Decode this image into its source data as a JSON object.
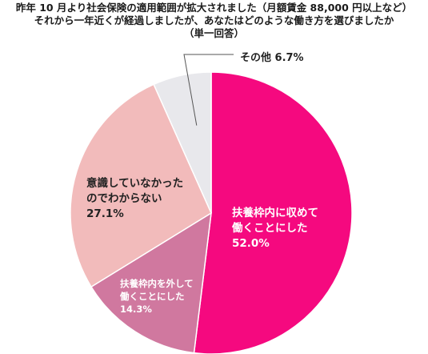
{
  "title_lines": [
    "昨年 10 月より社会保険の適用範囲が拡大されました（月額賃金 88,000 円以上など）",
    "それから一年近くが経過しましたが、あなたはどのような働き方を選びましたか",
    "（単一回答）"
  ],
  "chart_data": {
    "type": "pie",
    "start": "12 o'clock",
    "direction": "clockwise",
    "slices": [
      {
        "label_lines": [
          "扶養枠内に収めて",
          "働くことにした"
        ],
        "value_text": "52.0%",
        "value": 52.0,
        "color": "#f5097f",
        "text_color": "#ffffff"
      },
      {
        "label_lines": [
          "扶養枠内を外して",
          "働くことにした"
        ],
        "value_text": "14.3%",
        "value": 14.3,
        "color": "#d0789f",
        "text_color": "#ffffff"
      },
      {
        "label_lines": [
          "意識していなかった",
          "のでわからない"
        ],
        "value_text": "27.1%",
        "value": 27.1,
        "color": "#f2bbbb",
        "text_color": "#222222"
      },
      {
        "label_lines": [
          "その他 6.7%"
        ],
        "value_text": "",
        "value": 6.7,
        "color": "#e8e8ec",
        "text_color": "#222222"
      }
    ]
  }
}
